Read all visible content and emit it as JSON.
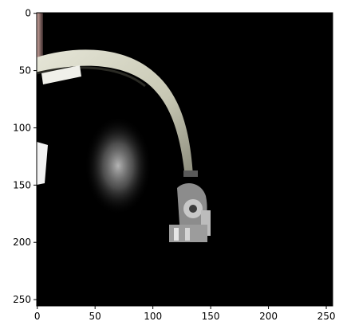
{
  "image": {
    "description_colors": {
      "background": "#000000",
      "helmet_shell_light": "#dcdccc",
      "helmet_shell_mid": "#b4b4a0",
      "glow_center": "#bebebe",
      "frame": "#000000"
    }
  },
  "axes": {
    "x_ticks": [
      "0",
      "50",
      "100",
      "150",
      "200",
      "250"
    ],
    "y_ticks": [
      "0",
      "50",
      "100",
      "150",
      "200",
      "250"
    ],
    "xlim": [
      -0.5,
      255.5
    ],
    "ylim": [
      255.5,
      -0.5
    ]
  }
}
